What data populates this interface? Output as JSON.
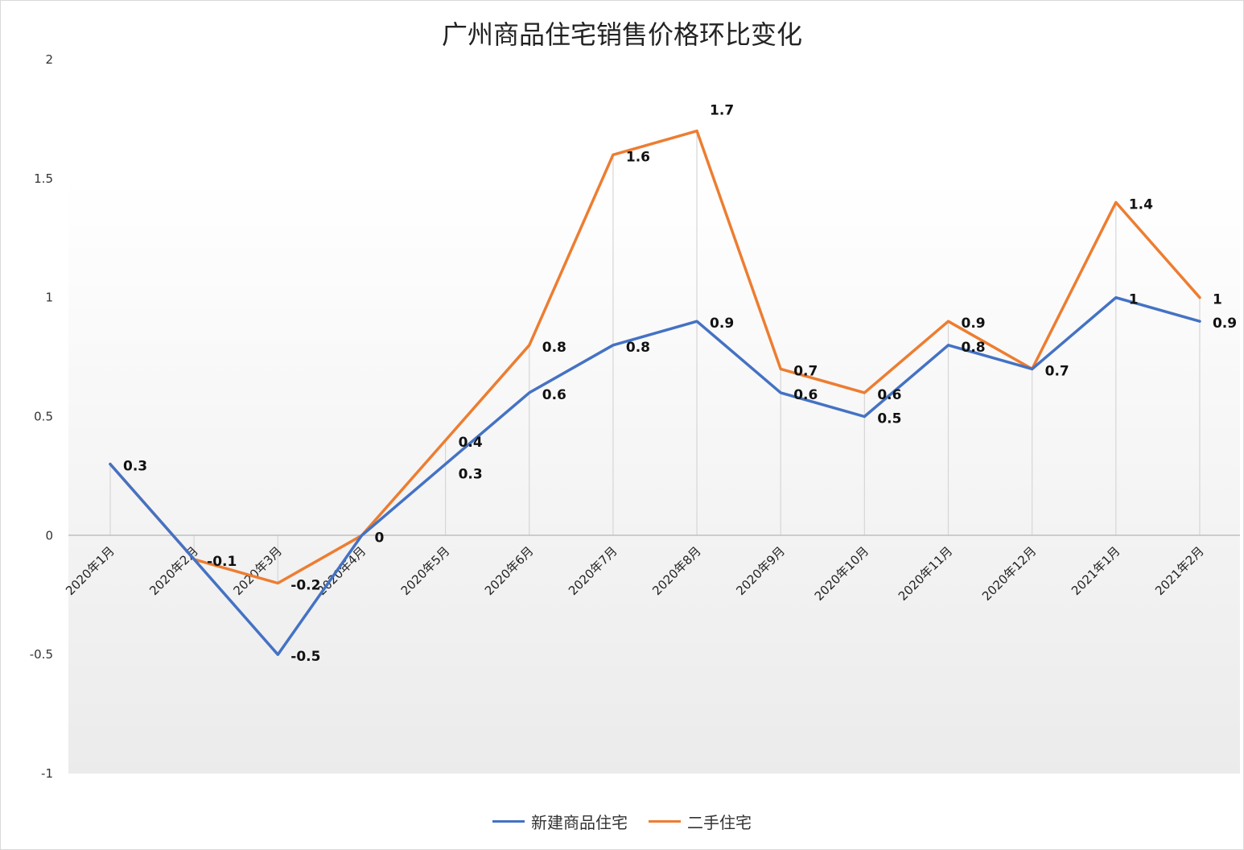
{
  "chart_data": {
    "type": "line",
    "title": "广州商品住宅销售价格环比变化",
    "categories": [
      "2020年1月",
      "2020年2月",
      "2020年3月",
      "2020年4月",
      "2020年5月",
      "2020年6月",
      "2020年7月",
      "2020年8月",
      "2020年9月",
      "2020年10月",
      "2020年11月",
      "2020年12月",
      "2021年1月",
      "2021年2月"
    ],
    "series": [
      {
        "name": "新建商品住宅",
        "color": "#4472c4",
        "values": [
          0.3,
          -0.1,
          -0.5,
          0,
          0.3,
          0.6,
          0.8,
          0.9,
          0.6,
          0.5,
          0.8,
          0.7,
          1,
          0.9
        ]
      },
      {
        "name": "二手住宅",
        "color": "#ed7d31",
        "values": [
          0.3,
          -0.1,
          -0.2,
          0,
          0.4,
          0.8,
          1.6,
          1.7,
          0.7,
          0.6,
          0.9,
          0.7,
          1.4,
          1
        ]
      }
    ],
    "data_labels": [
      {
        "text": "0.3"
      },
      {
        "text": "-0.1"
      },
      {
        "text": "-0.2"
      },
      {
        "text": "-0.5"
      },
      {
        "text": "0"
      },
      {
        "text": "0.4"
      },
      {
        "text": "0.3"
      },
      {
        "text": "0.8"
      },
      {
        "text": "0.6"
      },
      {
        "text": "1.6"
      },
      {
        "text": "0.8"
      },
      {
        "text": "1.7"
      },
      {
        "text": "0.9"
      },
      {
        "text": "0.7"
      },
      {
        "text": "0.6"
      },
      {
        "text": "0.6"
      },
      {
        "text": "0.5"
      },
      {
        "text": "0.9"
      },
      {
        "text": "0.8"
      },
      {
        "text": "0.7"
      },
      {
        "text": "1.4"
      },
      {
        "text": "1"
      },
      {
        "text": "1"
      },
      {
        "text": "0.9"
      }
    ],
    "yticks": [
      "2",
      "1.5",
      "1",
      "0.5",
      "0",
      "-0.5",
      "-1"
    ],
    "ylim": [
      -1,
      2
    ],
    "grid": "vertical drop lines at categories",
    "legend": "bottom-center"
  }
}
